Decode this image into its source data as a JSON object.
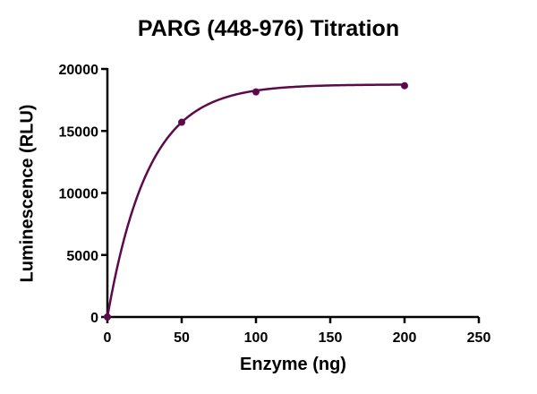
{
  "chart_data": {
    "type": "line",
    "title": "PARG (448-976) Titration",
    "xlabel": "Enzyme (ng)",
    "ylabel": "Luminescence (RLU)",
    "x": [
      0,
      50,
      100,
      200
    ],
    "series": [
      {
        "name": "PARG (448-976)",
        "values": [
          0,
          15700,
          18150,
          18650
        ],
        "color": "#5c0a4c",
        "marker": "circle",
        "fit": "one-phase association curve"
      }
    ],
    "xlim": [
      0,
      250
    ],
    "ylim": [
      0,
      20000
    ],
    "xticks": [
      0,
      50,
      100,
      150,
      200,
      250
    ],
    "yticks": [
      0,
      5000,
      10000,
      15000,
      20000
    ],
    "grid": false,
    "legend": "none"
  },
  "labels": {
    "title": "PARG (448-976) Titration",
    "xlabel": "Enzyme (ng)",
    "ylabel": "Luminescence (RLU)"
  }
}
